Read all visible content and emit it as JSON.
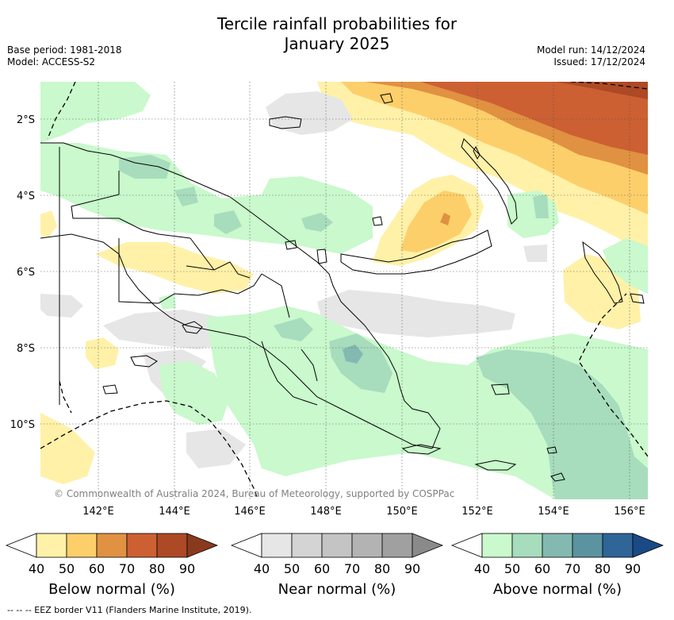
{
  "title_line1": "Tercile rainfall probabilities for",
  "title_line2": "January 2025",
  "base_period": "Base period: 1981-2018",
  "model": "Model: ACCESS-S2",
  "model_run": "Model run: 14/12/2024",
  "issued": "Issued: 17/12/2024",
  "copyright": "© Commonwealth of Australia 2024, Bureau of Meteorology, supported by COSPPac",
  "lat_labels": [
    "2°S",
    "4°S",
    "6°S",
    "8°S",
    "10°S"
  ],
  "lon_labels": [
    "142°E",
    "144°E",
    "146°E",
    "148°E",
    "150°E",
    "152°E",
    "154°E",
    "156°E"
  ],
  "legends": [
    {
      "title": "Below normal (%)",
      "ticks": [
        "40",
        "50",
        "60",
        "70",
        "80",
        "90"
      ],
      "colors": [
        "#fff1a8",
        "#fdcf6b",
        "#e09141",
        "#cc6032",
        "#ad4925",
        "#8a3a1c"
      ]
    },
    {
      "title": "Near normal (%)",
      "ticks": [
        "40",
        "50",
        "60",
        "70",
        "80",
        "90"
      ],
      "colors": [
        "#e6e6e6",
        "#d4d4d4",
        "#c4c4c4",
        "#b3b3b3",
        "#a0a0a0",
        "#8a8a8a"
      ]
    },
    {
      "title": "Above normal (%)",
      "ticks": [
        "40",
        "50",
        "60",
        "70",
        "80",
        "90"
      ],
      "colors": [
        "#c9f9cc",
        "#a7dcbd",
        "#83b9b0",
        "#5b93a0",
        "#2f6597",
        "#1a4a86"
      ]
    }
  ],
  "footnote": "--  --  -- EEZ border V11 (Flanders Marine Institute, 2019).",
  "colors": {
    "below_40": "#fff1a8",
    "below_50": "#fdcf6b",
    "below_60": "#e09141",
    "below_70": "#cc6032",
    "below_80": "#ad4925",
    "near_40": "#e6e6e6",
    "above_40": "#c9f9cc",
    "above_50": "#a7dcbd",
    "above_60": "#83b9b0"
  }
}
